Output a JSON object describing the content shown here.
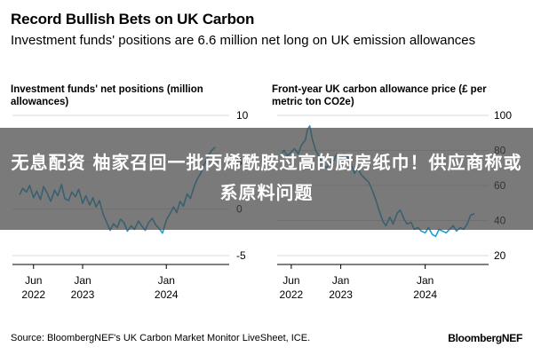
{
  "header": {
    "title": "Record Bullish Bets on UK Carbon",
    "subtitle": "Investment funds' positions are 6.6 million net long on UK emission allowances"
  },
  "overlay": {
    "text": "无息配资 柚家召回一批丙烯酰胺过高的厨房纸巾！供应商称或系原料问题"
  },
  "footer": {
    "source": "Source: BloombergNEF's UK Carbon Market Monitor LiveSheet, ICE.",
    "brand": "BloombergNEF"
  },
  "colors": {
    "line": "#1a9fd6",
    "grid": "#d9d9d9",
    "overlay": "#4a4a4a"
  },
  "chart_data": [
    {
      "type": "line",
      "title": "Investment funds' net positions (million allowances)",
      "x_tick_labels": [
        [
          "Jun",
          "2022"
        ],
        [
          "Jan",
          "2023"
        ],
        [
          "Jan",
          "2024"
        ]
      ],
      "x_ticks": [
        "2022-06-01",
        "2023-01-01",
        "2024-01-01"
      ],
      "xlim": [
        "2022-03-01",
        "2024-10-01"
      ],
      "ylim": [
        -5,
        10
      ],
      "y_ticks": [
        10,
        5,
        0,
        -5
      ],
      "y_tick_labels": [
        "10",
        "5",
        "0",
        "-5"
      ],
      "y_axis_side": "right",
      "series": [
        {
          "x": [
            "2022-04-01",
            "2022-04-15",
            "2022-05-01",
            "2022-05-15",
            "2022-06-01",
            "2022-06-15",
            "2022-07-01",
            "2022-07-15",
            "2022-08-01",
            "2022-08-15",
            "2022-09-01",
            "2022-09-15",
            "2022-10-01",
            "2022-10-15",
            "2022-11-01",
            "2022-11-15",
            "2022-12-01",
            "2022-12-15",
            "2023-01-01",
            "2023-01-15",
            "2023-02-01",
            "2023-02-15",
            "2023-03-01",
            "2023-03-15",
            "2023-04-01",
            "2023-04-15",
            "2023-05-01",
            "2023-05-15",
            "2023-06-01",
            "2023-06-15",
            "2023-07-01",
            "2023-07-15",
            "2023-08-01",
            "2023-08-15",
            "2023-09-01",
            "2023-09-15",
            "2023-10-01",
            "2023-10-15",
            "2023-11-01",
            "2023-11-15",
            "2023-12-01",
            "2023-12-15",
            "2024-01-01",
            "2024-01-15",
            "2024-02-01",
            "2024-02-15",
            "2024-03-01",
            "2024-03-15",
            "2024-04-01",
            "2024-04-15",
            "2024-05-01",
            "2024-05-15",
            "2024-06-01",
            "2024-06-15",
            "2024-07-01",
            "2024-07-15",
            "2024-08-01"
          ],
          "y": [
            1.5,
            2.2,
            1.8,
            2.5,
            1.2,
            1.9,
            1.0,
            2.4,
            1.6,
            0.8,
            2.0,
            1.4,
            2.6,
            1.1,
            0.9,
            1.8,
            1.3,
            2.1,
            0.6,
            1.4,
            0.4,
            1.2,
            0.2,
            0.9,
            -0.6,
            -1.4,
            -2.3,
            -1.6,
            -2.0,
            -1.1,
            -1.5,
            -2.4,
            -1.8,
            -2.2,
            -1.3,
            -1.8,
            -2.3,
            -1.5,
            -1.0,
            -1.7,
            -2.1,
            -2.6,
            -1.2,
            -0.6,
            0.2,
            -0.4,
            0.8,
            0.3,
            1.6,
            1.1,
            2.4,
            3.2,
            3.9,
            4.8,
            5.6,
            6.2,
            6.6
          ]
        }
      ]
    },
    {
      "type": "line",
      "title": "Front-year UK carbon allowance price (£ per metric ton CO2e)",
      "x_tick_labels": [
        [
          "Jun",
          "2022"
        ],
        [
          "Jan",
          "2023"
        ],
        [
          "Jan",
          "2024"
        ]
      ],
      "x_ticks": [
        "2022-06-01",
        "2023-01-01",
        "2024-01-01"
      ],
      "xlim": [
        "2022-04-01",
        "2024-10-01"
      ],
      "ylim": [
        20,
        100
      ],
      "y_ticks": [
        100,
        80,
        60,
        40,
        20
      ],
      "y_tick_labels": [
        "100",
        "80",
        "60",
        "40",
        "20"
      ],
      "y_axis_side": "right",
      "series": [
        {
          "x": [
            "2022-04-20",
            "2022-05-01",
            "2022-05-15",
            "2022-06-01",
            "2022-06-15",
            "2022-07-01",
            "2022-07-15",
            "2022-08-01",
            "2022-08-10",
            "2022-08-20",
            "2022-09-01",
            "2022-09-15",
            "2022-10-01",
            "2022-10-15",
            "2022-11-01",
            "2022-11-15",
            "2022-12-01",
            "2022-12-15",
            "2023-01-01",
            "2023-01-15",
            "2023-02-01",
            "2023-02-15",
            "2023-03-01",
            "2023-03-15",
            "2023-04-01",
            "2023-04-15",
            "2023-05-01",
            "2023-05-15",
            "2023-06-01",
            "2023-06-15",
            "2023-07-01",
            "2023-07-15",
            "2023-08-01",
            "2023-08-15",
            "2023-09-01",
            "2023-09-15",
            "2023-10-01",
            "2023-10-15",
            "2023-11-01",
            "2023-11-15",
            "2023-12-01",
            "2023-12-15",
            "2024-01-01",
            "2024-01-15",
            "2024-02-01",
            "2024-02-15",
            "2024-03-01",
            "2024-03-15",
            "2024-04-01",
            "2024-04-15",
            "2024-05-01",
            "2024-05-15",
            "2024-06-01",
            "2024-06-15",
            "2024-07-01",
            "2024-07-15",
            "2024-08-01"
          ],
          "y": [
            78,
            80,
            77,
            79,
            81,
            78,
            83,
            86,
            92,
            94,
            86,
            80,
            76,
            72,
            70,
            73,
            74,
            78,
            75,
            78,
            76,
            72,
            67,
            70,
            66,
            64,
            62,
            58,
            52,
            46,
            40,
            37,
            42,
            38,
            44,
            46,
            41,
            38,
            39,
            35,
            36,
            34,
            33,
            36,
            32,
            31,
            35,
            34,
            33,
            35,
            37,
            34,
            36,
            35,
            38,
            43,
            44
          ]
        }
      ]
    }
  ]
}
